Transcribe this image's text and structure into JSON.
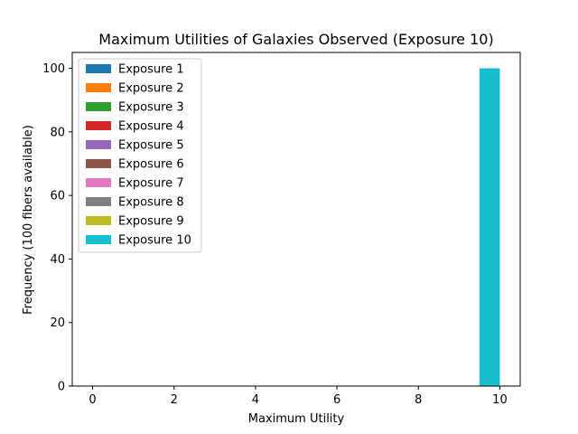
{
  "chart_data": {
    "type": "bar",
    "title": "Maximum Utilities of Galaxies Observed (Exposure 10)",
    "xlabel": "Maximum Utility",
    "ylabel": "Frequency (100 fibers available)",
    "xlim": [
      -0.5,
      10.5
    ],
    "ylim": [
      0,
      105
    ],
    "xticks": [
      0,
      2,
      4,
      6,
      8,
      10
    ],
    "yticks": [
      0,
      20,
      40,
      60,
      80,
      100
    ],
    "grid": false,
    "legend_position": "top-left",
    "series": [
      {
        "name": "Exposure 1",
        "color": "#1f77b4",
        "bins": []
      },
      {
        "name": "Exposure 2",
        "color": "#ff7f0e",
        "bins": []
      },
      {
        "name": "Exposure 3",
        "color": "#2ca02c",
        "bins": []
      },
      {
        "name": "Exposure 4",
        "color": "#d62728",
        "bins": []
      },
      {
        "name": "Exposure 5",
        "color": "#9467bd",
        "bins": []
      },
      {
        "name": "Exposure 6",
        "color": "#8c564b",
        "bins": []
      },
      {
        "name": "Exposure 7",
        "color": "#e377c2",
        "bins": []
      },
      {
        "name": "Exposure 8",
        "color": "#7f7f7f",
        "bins": []
      },
      {
        "name": "Exposure 9",
        "color": "#bcbd22",
        "bins": []
      },
      {
        "name": "Exposure 10",
        "color": "#17becf",
        "bins": [
          {
            "x0": 9.5,
            "x1": 10.0,
            "count": 100
          }
        ]
      }
    ]
  }
}
